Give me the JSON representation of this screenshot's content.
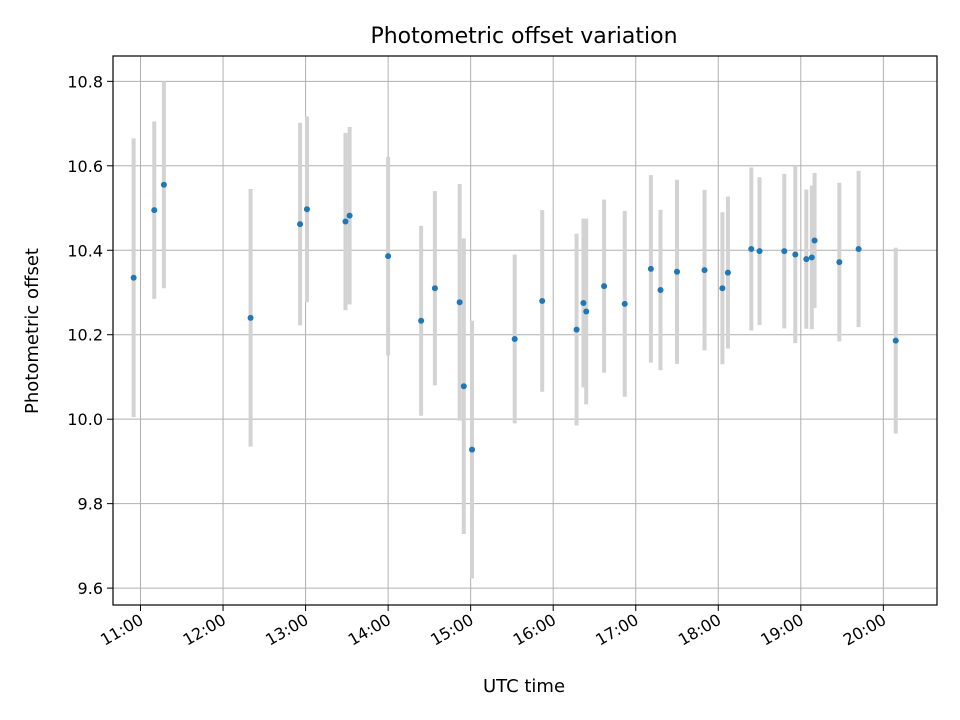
{
  "chart_data": {
    "type": "scatter",
    "title": "Photometric offset variation",
    "xlabel": "UTC time",
    "ylabel": "Photometric offset",
    "xlim": [
      "10:40",
      "20:39"
    ],
    "ylim": [
      9.56,
      10.86
    ],
    "xticks": [
      "11:00",
      "12:00",
      "13:00",
      "14:00",
      "15:00",
      "16:00",
      "17:00",
      "18:00",
      "19:00",
      "20:00"
    ],
    "yticks": [
      "9.6",
      "9.8",
      "10.0",
      "10.2",
      "10.4",
      "10.6",
      "10.8"
    ],
    "grid": true,
    "series": [
      {
        "marker_color": "#1f77b4",
        "errorbar_color": "#d3d3d3",
        "points": [
          {
            "x": "10:55",
            "y": 10.335,
            "err": 0.33
          },
          {
            "x": "11:10",
            "y": 10.495,
            "err": 0.21
          },
          {
            "x": "11:17",
            "y": 10.555,
            "err": 0.245
          },
          {
            "x": "12:20",
            "y": 10.24,
            "err": 0.305
          },
          {
            "x": "12:56",
            "y": 10.462,
            "err": 0.24
          },
          {
            "x": "13:01",
            "y": 10.497,
            "err": 0.22
          },
          {
            "x": "13:29",
            "y": 10.468,
            "err": 0.21
          },
          {
            "x": "13:32",
            "y": 10.482,
            "err": 0.21
          },
          {
            "x": "14:00",
            "y": 10.386,
            "err": 0.235
          },
          {
            "x": "14:24",
            "y": 10.233,
            "err": 0.225
          },
          {
            "x": "14:34",
            "y": 10.31,
            "err": 0.23
          },
          {
            "x": "14:52",
            "y": 10.277,
            "err": 0.28
          },
          {
            "x": "14:55",
            "y": 10.078,
            "err": 0.35
          },
          {
            "x": "15:01",
            "y": 9.928,
            "err": 0.305
          },
          {
            "x": "15:32",
            "y": 10.19,
            "err": 0.2
          },
          {
            "x": "15:52",
            "y": 10.28,
            "err": 0.215
          },
          {
            "x": "16:17",
            "y": 10.212,
            "err": 0.227
          },
          {
            "x": "16:22",
            "y": 10.275,
            "err": 0.2
          },
          {
            "x": "16:24",
            "y": 10.255,
            "err": 0.22
          },
          {
            "x": "16:37",
            "y": 10.315,
            "err": 0.205
          },
          {
            "x": "16:52",
            "y": 10.273,
            "err": 0.22
          },
          {
            "x": "17:11",
            "y": 10.356,
            "err": 0.222
          },
          {
            "x": "17:18",
            "y": 10.306,
            "err": 0.19
          },
          {
            "x": "17:30",
            "y": 10.349,
            "err": 0.218
          },
          {
            "x": "17:50",
            "y": 10.353,
            "err": 0.19
          },
          {
            "x": "18:03",
            "y": 10.31,
            "err": 0.18
          },
          {
            "x": "18:07",
            "y": 10.347,
            "err": 0.18
          },
          {
            "x": "18:24",
            "y": 10.403,
            "err": 0.193
          },
          {
            "x": "18:30",
            "y": 10.398,
            "err": 0.175
          },
          {
            "x": "18:48",
            "y": 10.398,
            "err": 0.183
          },
          {
            "x": "18:56",
            "y": 10.39,
            "err": 0.21
          },
          {
            "x": "19:04",
            "y": 10.379,
            "err": 0.165
          },
          {
            "x": "19:08",
            "y": 10.383,
            "err": 0.17
          },
          {
            "x": "19:10",
            "y": 10.423,
            "err": 0.16
          },
          {
            "x": "19:28",
            "y": 10.372,
            "err": 0.188
          },
          {
            "x": "19:42",
            "y": 10.403,
            "err": 0.185
          },
          {
            "x": "20:09",
            "y": 10.186,
            "err": 0.22
          }
        ]
      }
    ]
  }
}
